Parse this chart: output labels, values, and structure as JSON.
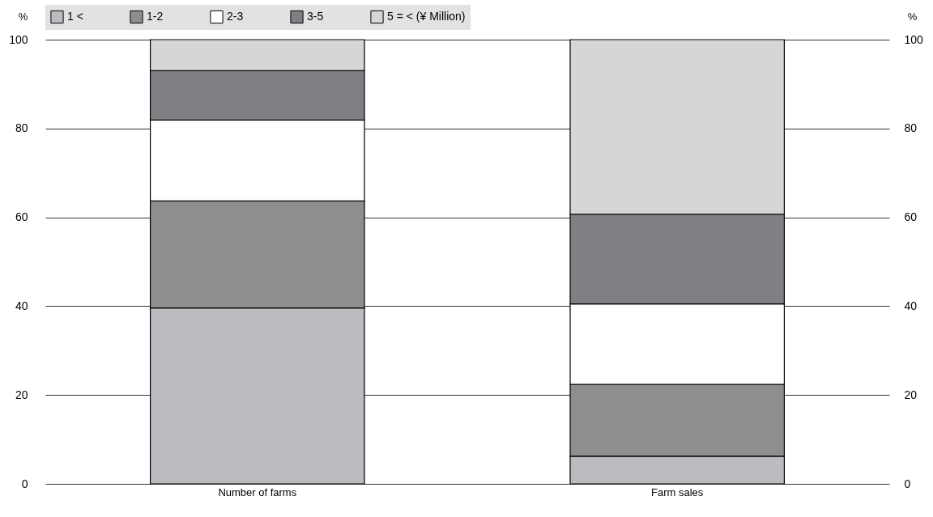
{
  "chart_data": {
    "type": "bar",
    "stacked": true,
    "categories": [
      "Number of farms",
      "Farm sales"
    ],
    "series": [
      {
        "name": "1 <",
        "color": "#bbbcc0",
        "values": [
          39.6,
          6.2
        ]
      },
      {
        "name": "1-2",
        "color": "#8e8e8e",
        "values": [
          24.1,
          16.2
        ]
      },
      {
        "name": "2-3",
        "color": "#ffffff",
        "values": [
          18.2,
          18.1
        ]
      },
      {
        "name": "3-5",
        "color": "#7f8084",
        "values": [
          11.1,
          20.2
        ]
      },
      {
        "name": "5 = < (¥ Million)",
        "color": "#d6d6d6",
        "values": [
          7.0,
          39.3
        ]
      }
    ],
    "ylabel": "%",
    "ylim": [
      0,
      100
    ],
    "yticks": [
      0,
      20,
      40,
      60,
      80,
      100
    ],
    "y2label": "%",
    "y2lim": [
      0,
      100
    ],
    "y2ticks": [
      0,
      20,
      40,
      60,
      80,
      100
    ],
    "grid": "y",
    "legend": "top"
  }
}
